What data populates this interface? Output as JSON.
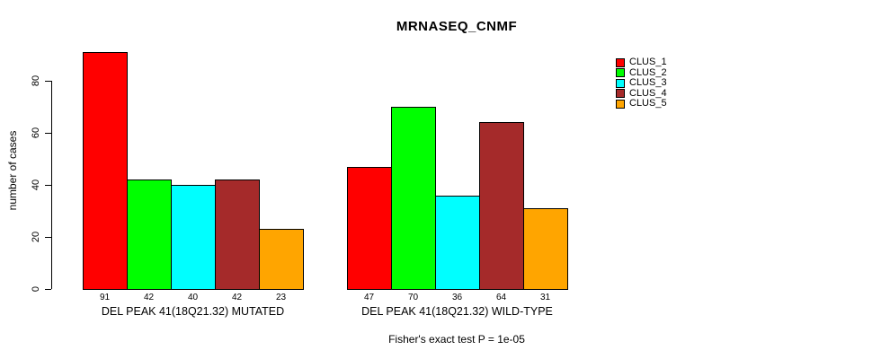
{
  "title": "MRNASEQ_CNMF",
  "ylabel": "number of cases",
  "caption": "Fisher's exact test P = 1e-05",
  "legend": {
    "items": [
      {
        "label": "CLUS_1",
        "color": "#FF0000"
      },
      {
        "label": "CLUS_2",
        "color": "#00FF00"
      },
      {
        "label": "CLUS_3",
        "color": "#00FFFF"
      },
      {
        "label": "CLUS_4",
        "color": "#A52A2A"
      },
      {
        "label": "CLUS_5",
        "color": "#FFA500"
      }
    ]
  },
  "chart_data": {
    "type": "bar",
    "title": "MRNASEQ_CNMF",
    "xlabel": "",
    "ylabel": "number of cases",
    "categories": [
      "DEL PEAK 41(18Q21.32) MUTATED",
      "DEL PEAK 41(18Q21.32) WILD-TYPE"
    ],
    "series": [
      {
        "name": "CLUS_1",
        "color": "#FF0000",
        "values": [
          91,
          47
        ]
      },
      {
        "name": "CLUS_2",
        "color": "#00FF00",
        "values": [
          42,
          70
        ]
      },
      {
        "name": "CLUS_3",
        "color": "#00FFFF",
        "values": [
          40,
          36
        ]
      },
      {
        "name": "CLUS_4",
        "color": "#A52A2A",
        "values": [
          42,
          64
        ]
      },
      {
        "name": "CLUS_5",
        "color": "#FFA500",
        "values": [
          23,
          31
        ]
      }
    ],
    "bar_value_labels": [
      [
        91,
        42,
        40,
        42,
        23
      ],
      [
        47,
        70,
        36,
        64,
        31
      ]
    ],
    "yticks": [
      0,
      20,
      40,
      60,
      80
    ],
    "ylim": [
      0,
      91
    ],
    "grid": false,
    "legend_position": "right",
    "annotation": "Fisher's exact test P = 1e-05"
  }
}
